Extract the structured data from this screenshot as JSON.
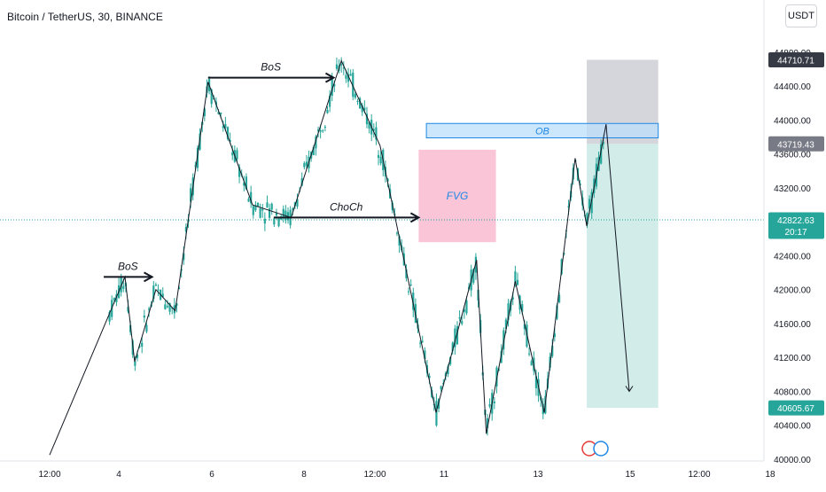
{
  "header": {
    "symbol_title": "Bitcoin / TetherUS, 30, BINANCE",
    "currency": "USDT"
  },
  "price_labels": {
    "target_price": "44710.71",
    "entry_price": "43719.43",
    "current_price": "42822.63",
    "countdown": "20:17",
    "stop_price": "40605.67"
  },
  "colors": {
    "candle": "#26a69a",
    "current_price_line": "#26a69a",
    "fvg_zone": "#f8bbd0",
    "ob_zone": "#bbdefb",
    "ob_border": "#1e88e5",
    "stop_zone": "#b2b5be",
    "target_zone": "#b2dfdb",
    "label_dark": "#363a45",
    "label_gray": "#787b86"
  },
  "chart_data": {
    "type": "line",
    "symbol": "BTCUSDT",
    "timeframe": "30",
    "x_tick_labels": [
      "12:00",
      "4",
      "6",
      "8",
      "12:00",
      "11",
      "13",
      "15",
      "12:00",
      "18"
    ],
    "y_tick_labels": [
      "44800.00",
      "44400.00",
      "44000.00",
      "43600.00",
      "43200.00",
      "42800.00",
      "42400.00",
      "42000.00",
      "41600.00",
      "41200.00",
      "40800.00",
      "40400.00",
      "40000.00"
    ],
    "ylim": [
      40000,
      44900
    ],
    "y_ticks": [
      44800,
      44400,
      44000,
      43600,
      43200,
      42800,
      42400,
      42000,
      41600,
      41200,
      40800,
      40400,
      40000
    ],
    "current_price": 42822.63,
    "series": [
      {
        "values": [
          {
            "x": 0.0,
            "y": 40050
          },
          {
            "x": 1.95,
            "y": 42150
          },
          {
            "x": 2.2,
            "y": 41150
          },
          {
            "x": 2.75,
            "y": 42000
          },
          {
            "x": 3.25,
            "y": 41750
          },
          {
            "x": 4.1,
            "y": 44450
          },
          {
            "x": 5.25,
            "y": 43000
          },
          {
            "x": 6.25,
            "y": 42850
          },
          {
            "x": 7.55,
            "y": 44700
          },
          {
            "x": 8.55,
            "y": 43700
          },
          {
            "x": 10.0,
            "y": 40550
          },
          {
            "x": 11.05,
            "y": 42350
          },
          {
            "x": 11.3,
            "y": 40300
          },
          {
            "x": 12.05,
            "y": 42100
          },
          {
            "x": 12.8,
            "y": 40550
          },
          {
            "x": 13.6,
            "y": 43550
          },
          {
            "x": 13.9,
            "y": 42750
          },
          {
            "x": 14.4,
            "y": 43950
          },
          {
            "x": 15.0,
            "y": 40800
          }
        ]
      }
    ],
    "annotations": [
      {
        "text": "BoS",
        "x1": 1.4,
        "x2": 2.65,
        "y": 42150
      },
      {
        "text": "BoS",
        "x1": 4.1,
        "x2": 7.35,
        "y": 44500
      },
      {
        "text": "ChoCh",
        "x1": 5.8,
        "x2": 9.55,
        "y": 42850
      },
      {
        "text": "FVG",
        "x1": 9.55,
        "x2": 11.55,
        "y1": 42560,
        "y2": 43650
      },
      {
        "text": "OB",
        "x1": 9.75,
        "x2": 15.75,
        "y1": 43790,
        "y2": 43960
      }
    ],
    "position": {
      "x1": 13.9,
      "x2": 15.75,
      "target": 44710.71,
      "entry": 43719.43,
      "stop": 40605.67
    },
    "grid": false
  }
}
